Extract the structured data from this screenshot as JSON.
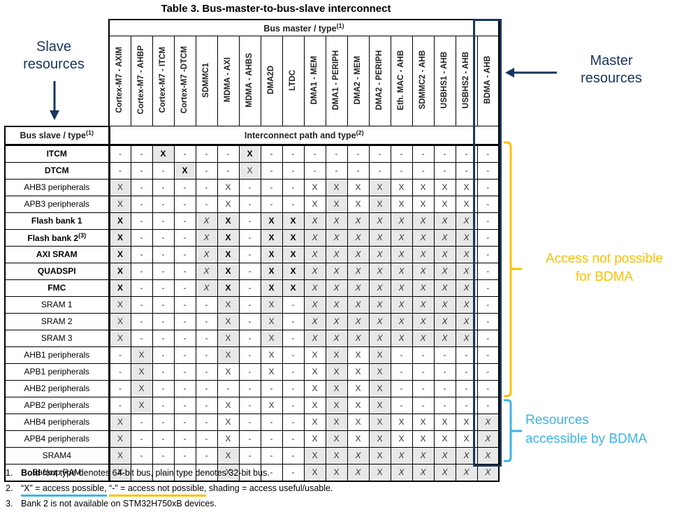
{
  "title": "Table 3. Bus-master-to-bus-slave interconnect",
  "colors": {
    "navy": "#17365D",
    "yellow": "#FFC000",
    "cyan": "#3CB4E6",
    "shade": "#E8E8E8"
  },
  "annotations": {
    "slave_lines": [
      "Slave",
      "resources"
    ],
    "master_lines": [
      "Master",
      "resources"
    ],
    "bdma_not_lines": [
      "Access not possible",
      "for BDMA"
    ],
    "bdma_yes_lines": [
      "Resources",
      "accessible by BDMA"
    ]
  },
  "table": {
    "master_header": "Bus master / type",
    "master_header_sup": "(1)",
    "slave_header": "Bus slave / type",
    "slave_header_sup": "(1)",
    "interconnect_header": "Interconnect path and type",
    "interconnect_header_sup": "(2)",
    "columns": [
      {
        "label": "Cortex-M7 - AXIM",
        "bold": true
      },
      {
        "label": "Cortex-M7 - AHBP",
        "bold": false
      },
      {
        "label": "Cortex-M7 - ITCM",
        "bold": true
      },
      {
        "label": "Cortex-M7 -DTCM",
        "bold": true
      },
      {
        "label": "SDMMC1",
        "bold": false
      },
      {
        "label": "MDMA - AXI",
        "bold": true
      },
      {
        "label": "MDMA - AHBS",
        "bold": false
      },
      {
        "label": "DMA2D",
        "bold": true
      },
      {
        "label": "LTDC",
        "bold": true
      },
      {
        "label": "DMA1 - MEM",
        "bold": false
      },
      {
        "label": "DMA1 - PERIPH",
        "bold": false
      },
      {
        "label": "DMA2 - MEM",
        "bold": false
      },
      {
        "label": "DMA2 - PERIPH",
        "bold": false
      },
      {
        "label": "Eth. MAC - AHB",
        "bold": false
      },
      {
        "label": "SDMMC2 - AHB",
        "bold": false
      },
      {
        "label": "USBHS1 - AHB",
        "bold": false
      },
      {
        "label": "USBHS2 - AHB",
        "bold": false
      },
      {
        "label": "BDMA - AHB",
        "bold": false
      }
    ],
    "cell_legend": "codes: X or - ; b=bold(64-bit), i=italic, s=shaded(useful/usable)",
    "rows": [
      {
        "label": "ITCM",
        "bold": true,
        "cells": [
          "-",
          "-",
          "Xbs",
          "-",
          "-",
          "-",
          "Xbs",
          "-",
          "-",
          "-",
          "-",
          "-",
          "-",
          "-",
          "-",
          "-",
          "-",
          "-"
        ]
      },
      {
        "label": "DTCM",
        "bold": true,
        "cells": [
          "-",
          "-",
          "-",
          "Xbs",
          "-",
          "-",
          "Xs",
          "-",
          "-",
          "-",
          "-",
          "-",
          "-",
          "-",
          "-",
          "-",
          "-",
          "-"
        ]
      },
      {
        "label": "AHB3 peripherals",
        "bold": false,
        "cells": [
          "Xs",
          "-",
          "-",
          "-",
          "-",
          "X",
          "-",
          "-",
          "-",
          "X",
          "Xs",
          "X",
          "Xs",
          "X",
          "X",
          "X",
          "X",
          "-"
        ]
      },
      {
        "label": "APB3 peripherals",
        "bold": false,
        "cells": [
          "Xs",
          "-",
          "-",
          "-",
          "-",
          "X",
          "-",
          "-",
          "-",
          "X",
          "Xs",
          "X",
          "Xs",
          "X",
          "X",
          "X",
          "X",
          "-"
        ]
      },
      {
        "label": "Flash bank 1",
        "bold": true,
        "cells": [
          "Xbs",
          "-",
          "-",
          "-",
          "Xis",
          "Xbs",
          "-",
          "Xbs",
          "Xbs",
          "Xis",
          "Xis",
          "Xis",
          "Xis",
          "Xis",
          "Xis",
          "Xis",
          "Xis",
          "-"
        ]
      },
      {
        "label": "Flash bank 2",
        "sup": "(3)",
        "bold": true,
        "cells": [
          "Xbs",
          "-",
          "-",
          "-",
          "Xis",
          "Xbs",
          "-",
          "Xbs",
          "Xbs",
          "Xis",
          "Xis",
          "Xis",
          "Xis",
          "Xis",
          "Xis",
          "Xis",
          "Xis",
          "-"
        ]
      },
      {
        "label": "AXI SRAM",
        "bold": true,
        "cells": [
          "Xbs",
          "-",
          "-",
          "-",
          "Xis",
          "Xbs",
          "-",
          "Xbs",
          "Xbs",
          "Xis",
          "Xis",
          "Xis",
          "Xis",
          "Xis",
          "Xis",
          "Xis",
          "Xis",
          "-"
        ]
      },
      {
        "label": "QUADSPI",
        "bold": true,
        "cells": [
          "Xbs",
          "-",
          "-",
          "-",
          "Xis",
          "Xbs",
          "-",
          "Xbs",
          "Xbs",
          "Xis",
          "Xis",
          "Xis",
          "Xis",
          "Xis",
          "Xis",
          "Xis",
          "Xis",
          "-"
        ]
      },
      {
        "label": "FMC",
        "bold": true,
        "cells": [
          "Xbs",
          "-",
          "-",
          "-",
          "Xis",
          "Xbs",
          "-",
          "Xbs",
          "Xbs",
          "Xis",
          "Xis",
          "Xis",
          "Xis",
          "Xis",
          "Xis",
          "Xis",
          "Xis",
          "-"
        ]
      },
      {
        "label": "SRAM 1",
        "bold": false,
        "cells": [
          "Xs",
          "-",
          "-",
          "-",
          "-",
          "Xs",
          "-",
          "Xs",
          "-",
          "Xis",
          "Xis",
          "Xis",
          "Xis",
          "Xis",
          "Xis",
          "Xis",
          "Xis",
          "-"
        ]
      },
      {
        "label": "SRAM 2",
        "bold": false,
        "cells": [
          "Xs",
          "-",
          "-",
          "-",
          "-",
          "Xs",
          "-",
          "Xs",
          "-",
          "Xis",
          "Xis",
          "Xis",
          "Xis",
          "Xis",
          "Xis",
          "Xis",
          "Xis",
          "-"
        ]
      },
      {
        "label": "SRAM 3",
        "bold": false,
        "cells": [
          "Xs",
          "-",
          "-",
          "-",
          "-",
          "Xs",
          "-",
          "Xs",
          "-",
          "Xis",
          "Xis",
          "Xis",
          "Xis",
          "Xis",
          "Xis",
          "Xis",
          "Xis",
          "-"
        ]
      },
      {
        "label": "AHB1 peripherals",
        "bold": false,
        "cells": [
          "-",
          "Xs",
          "-",
          "-",
          "-",
          "Xs",
          "-",
          "X",
          "-",
          "X",
          "Xs",
          "X",
          "Xs",
          "-",
          "-",
          "-",
          "-",
          "-"
        ]
      },
      {
        "label": "APB1 peripherals",
        "bold": false,
        "cells": [
          "-",
          "Xs",
          "-",
          "-",
          "-",
          "X",
          "-",
          "X",
          "-",
          "X",
          "Xs",
          "X",
          "Xs",
          "-",
          "-",
          "-",
          "-",
          "-"
        ]
      },
      {
        "label": "AHB2 peripherals",
        "bold": false,
        "cells": [
          "-",
          "Xs",
          "-",
          "-",
          "-",
          "-",
          "-",
          "-",
          "-",
          "X",
          "Xs",
          "X",
          "Xs",
          "-",
          "-",
          "-",
          "-",
          "-"
        ]
      },
      {
        "label": "APB2 peripherals",
        "bold": false,
        "cells": [
          "-",
          "Xs",
          "-",
          "-",
          "-",
          "X",
          "-",
          "X",
          "-",
          "X",
          "Xs",
          "X",
          "Xs",
          "-",
          "-",
          "-",
          "-",
          "-"
        ]
      },
      {
        "label": "AHB4 peripherals",
        "bold": false,
        "cells": [
          "Xs",
          "-",
          "-",
          "-",
          "-",
          "X",
          "-",
          "-",
          "-",
          "X",
          "Xs",
          "X",
          "Xs",
          "X",
          "X",
          "X",
          "X",
          "Xis"
        ]
      },
      {
        "label": "APB4 peripherals",
        "bold": false,
        "cells": [
          "Xs",
          "-",
          "-",
          "-",
          "-",
          "X",
          "-",
          "-",
          "-",
          "X",
          "Xs",
          "X",
          "Xs",
          "X",
          "X",
          "X",
          "X",
          "Xis"
        ]
      },
      {
        "label": "SRAM4",
        "bold": false,
        "cells": [
          "Xs",
          "-",
          "-",
          "-",
          "-",
          "Xs",
          "-",
          "-",
          "-",
          "Xs",
          "Xs",
          "Xis",
          "Xs",
          "Xis",
          "Xis",
          "Xis",
          "Xis",
          "Xis"
        ]
      },
      {
        "label": "Backup RAM",
        "bold": false,
        "cells": [
          "Xs",
          "-",
          "-",
          "-",
          "-",
          "Xs",
          "-",
          "-",
          "-",
          "Xs",
          "Xs",
          "Xis",
          "Xs",
          "Xis",
          "Xis",
          "Xis",
          "Xis",
          "Xis"
        ]
      }
    ]
  },
  "footnotes": [
    {
      "num": "1.",
      "parts": [
        {
          "text": "Bold",
          "style": "bold"
        },
        {
          "text": " font type denotes 64-bit bus, plain type denotes 32-bit bus."
        }
      ]
    },
    {
      "num": "2.",
      "parts": [
        {
          "text": "“X” = access possible,",
          "style": "ul-cyan"
        },
        {
          "text": " "
        },
        {
          "text": "“-” = access not possible,",
          "style": "ul-yellow"
        },
        {
          "text": " shading = access useful/usable."
        }
      ]
    },
    {
      "num": "3.",
      "parts": [
        {
          "text": "Bank 2 is not available on STM32H750xB devices."
        }
      ]
    }
  ]
}
